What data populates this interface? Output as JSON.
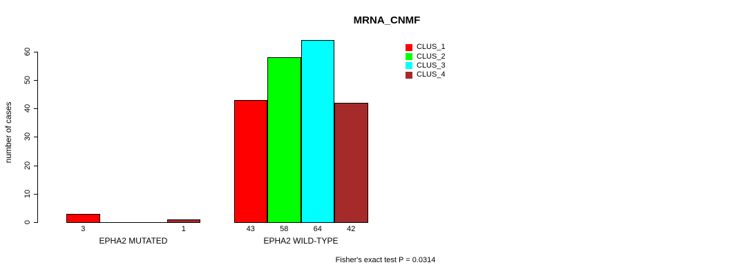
{
  "chart_data": {
    "type": "bar",
    "title": "MRNA_CNMF",
    "ylabel": "number of cases",
    "xlabel": "",
    "ylim": [
      0,
      66
    ],
    "yticks": [
      0,
      10,
      20,
      30,
      40,
      50,
      60
    ],
    "grid": false,
    "legend_position": "top-right",
    "series": [
      {
        "name": "CLUS_1",
        "color": "#ff0000"
      },
      {
        "name": "CLUS_2",
        "color": "#00ff00"
      },
      {
        "name": "CLUS_3",
        "color": "#00ffff"
      },
      {
        "name": "CLUS_4",
        "color": "#a52a2a"
      }
    ],
    "groups": [
      {
        "label": "EPHA2 MUTATED",
        "values": [
          3,
          0,
          0,
          1
        ],
        "bar_labels": [
          "3",
          "",
          "",
          "1"
        ]
      },
      {
        "label": "EPHA2 WILD-TYPE",
        "values": [
          43,
          58,
          64,
          42
        ],
        "bar_labels": [
          "43",
          "58",
          "64",
          "42"
        ]
      }
    ],
    "footnote": "Fisher's exact test P = 0.0314"
  }
}
